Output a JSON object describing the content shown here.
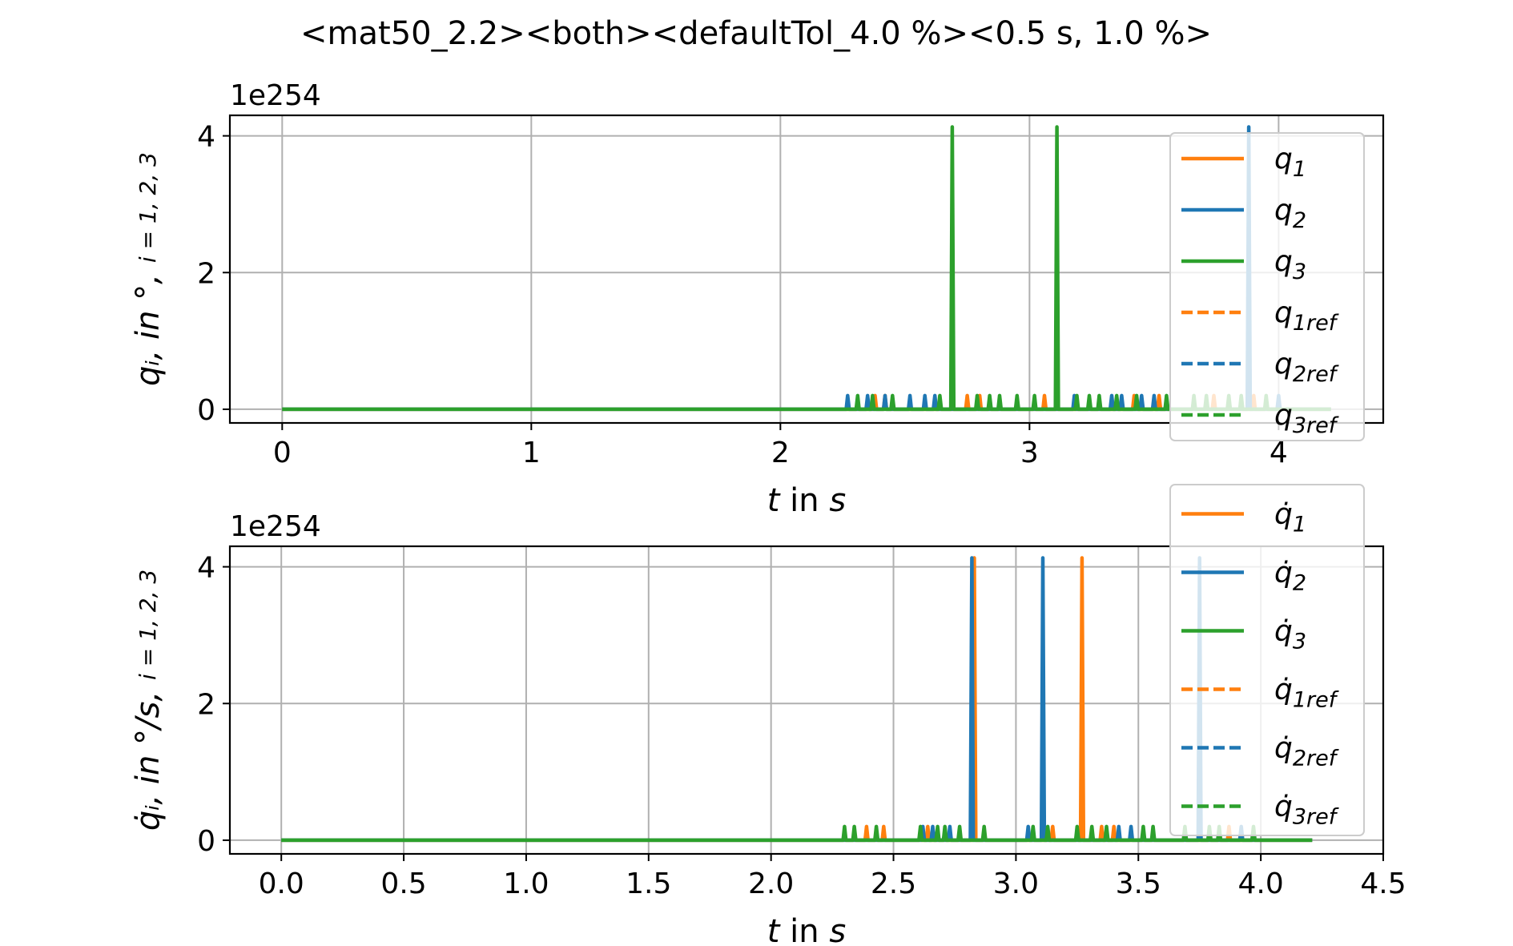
{
  "title": "<mat50_2.2><both><defaultTol_4.0 %><0.5 s, 1.0 %>",
  "colors": {
    "orange": "#ff7f0e",
    "blue": "#1f77b4",
    "green": "#2ca02c",
    "grid": "#b0b0b0"
  },
  "chart_data": [
    {
      "type": "line",
      "id": "top",
      "xlabel_var": "t",
      "xlabel_mid": " in ",
      "xlabel_unit": "s",
      "ylabel": "q_i,  in °,  i=1,2,3",
      "ylabel_main": "qᵢ,  in °,",
      "ylabel_sub": "i = 1, 2, 3",
      "offset_text": "1e254",
      "scale": 1e+254,
      "xlim": [
        -0.21,
        4.42
      ],
      "ylim": [
        -0.2,
        4.3
      ],
      "xticks": [
        0,
        1,
        2,
        3,
        4
      ],
      "xtick_labels": [
        "0",
        "1",
        "2",
        "3",
        "4"
      ],
      "yticks": [
        0,
        2,
        4
      ],
      "ytick_labels": [
        "0",
        "2",
        "4"
      ],
      "grid": true,
      "legend_position": "top-right",
      "legend": [
        {
          "main": "q",
          "sub": "1",
          "color": "orange",
          "dash": false
        },
        {
          "main": "q",
          "sub": "2",
          "color": "blue",
          "dash": false
        },
        {
          "main": "q",
          "sub": "3",
          "color": "green",
          "dash": false
        },
        {
          "main": "q",
          "sub": "1ref",
          "color": "orange",
          "dash": true
        },
        {
          "main": "q",
          "sub": "2ref",
          "color": "blue",
          "dash": true
        },
        {
          "main": "q",
          "sub": "3ref",
          "color": "green",
          "dash": true
        }
      ],
      "x_end": 4.21,
      "series": [
        {
          "name": "q1",
          "color": "orange",
          "spikes": [
            [
              2.38,
              0.2
            ],
            [
              2.42,
              0.2
            ],
            [
              2.75,
              0.2
            ],
            [
              2.8,
              0.2
            ],
            [
              3.06,
              0.2
            ],
            [
              3.42,
              0.2
            ],
            [
              3.52,
              0.2
            ],
            [
              3.74,
              0.2
            ],
            [
              3.9,
              0.2
            ]
          ]
        },
        {
          "name": "q2",
          "color": "blue",
          "spikes": [
            [
              2.27,
              0.2
            ],
            [
              2.35,
              0.2
            ],
            [
              2.42,
              0.2
            ],
            [
              2.52,
              0.2
            ],
            [
              2.58,
              0.2
            ],
            [
              2.62,
              0.2
            ],
            [
              3.18,
              0.2
            ],
            [
              3.33,
              0.2
            ],
            [
              3.37,
              0.2
            ],
            [
              3.45,
              0.2
            ],
            [
              3.5,
              0.2
            ],
            [
              3.88,
              4.13
            ],
            [
              4.0,
              0.2
            ]
          ]
        },
        {
          "name": "q3",
          "color": "green",
          "spikes": [
            [
              2.31,
              0.2
            ],
            [
              2.37,
              0.2
            ],
            [
              2.45,
              0.2
            ],
            [
              2.64,
              0.2
            ],
            [
              2.69,
              4.13
            ],
            [
              2.79,
              0.2
            ],
            [
              2.84,
              0.2
            ],
            [
              2.88,
              0.2
            ],
            [
              2.95,
              0.2
            ],
            [
              3.02,
              0.2
            ],
            [
              3.11,
              4.13
            ],
            [
              3.19,
              0.2
            ],
            [
              3.24,
              0.2
            ],
            [
              3.28,
              0.2
            ],
            [
              3.35,
              0.2
            ],
            [
              3.43,
              0.2
            ],
            [
              3.55,
              0.2
            ],
            [
              3.66,
              0.2
            ],
            [
              3.71,
              0.2
            ],
            [
              3.8,
              0.2
            ],
            [
              3.85,
              0.2
            ],
            [
              3.95,
              0.2
            ]
          ]
        }
      ]
    },
    {
      "type": "line",
      "id": "bottom",
      "xlabel_var": "t",
      "xlabel_mid": " in ",
      "xlabel_unit": "s",
      "ylabel": "q̇_i, in °/s,  i=1,2,3",
      "ylabel_main": "q̇ᵢ, in °/s,",
      "ylabel_sub": "i = 1, 2, 3",
      "offset_text": "1e254",
      "scale": 1e+254,
      "xlim": [
        -0.21,
        4.5
      ],
      "ylim": [
        -0.2,
        4.3
      ],
      "xticks": [
        0.0,
        0.5,
        1.0,
        1.5,
        2.0,
        2.5,
        3.0,
        3.5,
        4.0,
        4.5
      ],
      "xtick_labels": [
        "0.0",
        "0.5",
        "1.0",
        "1.5",
        "2.0",
        "2.5",
        "3.0",
        "3.5",
        "4.0",
        "4.5"
      ],
      "yticks": [
        0,
        2,
        4
      ],
      "ytick_labels": [
        "0",
        "2",
        "4"
      ],
      "grid": true,
      "legend_position": "top-right",
      "legend": [
        {
          "main": "q̇",
          "sub": "1",
          "color": "orange",
          "dash": false
        },
        {
          "main": "q̇",
          "sub": "2",
          "color": "blue",
          "dash": false
        },
        {
          "main": "q̇",
          "sub": "3",
          "color": "green",
          "dash": false
        },
        {
          "main": "q̇",
          "sub": "1ref",
          "color": "orange",
          "dash": true
        },
        {
          "main": "q̇",
          "sub": "2ref",
          "color": "blue",
          "dash": true
        },
        {
          "main": "q̇",
          "sub": "3ref",
          "color": "green",
          "dash": true
        }
      ],
      "x_end": 4.21,
      "series": [
        {
          "name": "q̇1",
          "color": "orange",
          "spikes": [
            [
              2.39,
              0.2
            ],
            [
              2.46,
              0.2
            ],
            [
              2.64,
              0.2
            ],
            [
              2.83,
              4.13
            ],
            [
              3.15,
              0.2
            ],
            [
              3.27,
              4.13
            ],
            [
              3.35,
              0.2
            ],
            [
              3.4,
              0.2
            ],
            [
              3.87,
              0.2
            ]
          ]
        },
        {
          "name": "q̇2",
          "color": "blue",
          "spikes": [
            [
              2.62,
              0.2
            ],
            [
              2.66,
              0.2
            ],
            [
              2.73,
              0.2
            ],
            [
              2.82,
              4.13
            ],
            [
              3.05,
              0.2
            ],
            [
              3.11,
              4.13
            ],
            [
              3.42,
              0.2
            ],
            [
              3.47,
              0.2
            ],
            [
              3.75,
              4.13
            ],
            [
              3.92,
              0.2
            ]
          ]
        },
        {
          "name": "q̇3",
          "color": "green",
          "spikes": [
            [
              2.3,
              0.2
            ],
            [
              2.34,
              0.2
            ],
            [
              2.43,
              0.2
            ],
            [
              2.61,
              0.2
            ],
            [
              2.68,
              0.2
            ],
            [
              2.71,
              0.2
            ],
            [
              2.77,
              0.2
            ],
            [
              2.87,
              0.2
            ],
            [
              3.07,
              0.2
            ],
            [
              3.13,
              0.2
            ],
            [
              3.25,
              0.2
            ],
            [
              3.31,
              0.2
            ],
            [
              3.37,
              0.2
            ],
            [
              3.52,
              0.2
            ],
            [
              3.56,
              0.2
            ],
            [
              3.69,
              0.2
            ],
            [
              3.79,
              0.2
            ],
            [
              3.83,
              0.2
            ],
            [
              3.97,
              0.2
            ]
          ]
        }
      ]
    }
  ]
}
